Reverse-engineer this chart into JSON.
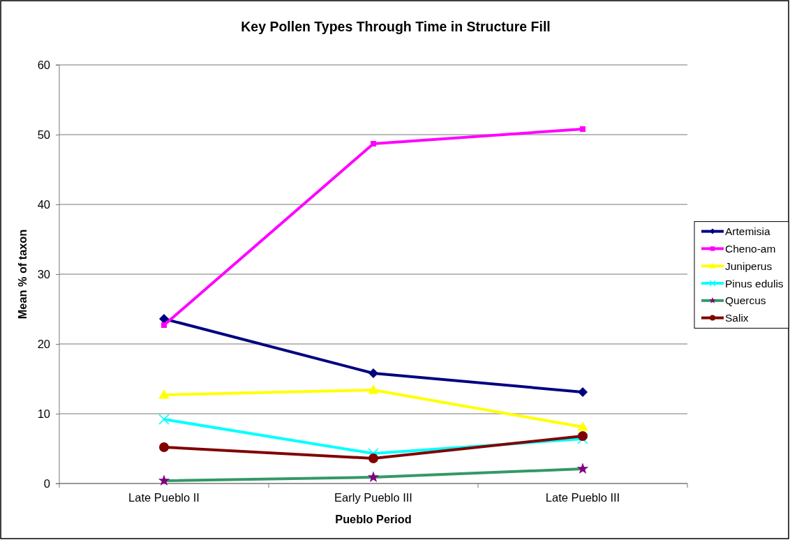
{
  "chart_data": {
    "type": "line",
    "title": "Key Pollen Types Through Time in Structure Fill",
    "xlabel": "Pueblo Period",
    "ylabel": "Mean % of taxon",
    "categories": [
      "Late Pueblo II",
      "Early Pueblo III",
      "Late Pueblo III"
    ],
    "series": [
      {
        "name": "Artemisia",
        "color": "#000080",
        "marker": "diamond",
        "values": [
          23.6,
          15.8,
          13.1
        ]
      },
      {
        "name": "Cheno-am",
        "color": "#ff00ff",
        "marker": "square",
        "values": [
          22.7,
          48.7,
          50.8
        ]
      },
      {
        "name": "Juniperus",
        "color": "#ffff00",
        "marker": "triangle",
        "values": [
          12.7,
          13.4,
          8.1
        ]
      },
      {
        "name": "Pinus edulis",
        "color": "#00ffff",
        "marker": "cross",
        "values": [
          9.2,
          4.3,
          6.4
        ]
      },
      {
        "name": "Quercus",
        "color": "#339966",
        "colors": [
          "#800080",
          "#800080",
          "#800080"
        ],
        "marker": "star",
        "values": [
          0.4,
          0.9,
          2.1
        ]
      },
      {
        "name": "Salix",
        "color": "#800000",
        "marker": "circle",
        "values": [
          5.2,
          3.6,
          6.8
        ]
      }
    ],
    "ylim": [
      0,
      60
    ],
    "yticks": [
      0,
      10,
      20,
      30,
      40,
      50,
      60
    ],
    "grid": "y",
    "legend": "right"
  }
}
